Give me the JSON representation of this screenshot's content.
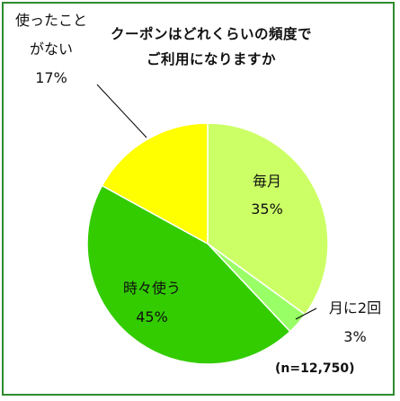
{
  "chart_data": {
    "type": "pie",
    "title": [
      "クーポンはどれくらいの頻度で",
      "ご利用になりますか"
    ],
    "slices": [
      {
        "label": "毎月",
        "value": 35,
        "value_label": "35%",
        "color": "#ccff66"
      },
      {
        "label": "月に2回",
        "value": 3,
        "value_label": "3%",
        "color": "#99ff66"
      },
      {
        "label": "時々使う",
        "value": 45,
        "value_label": "45%",
        "color": "#33cc00"
      },
      {
        "label_lines": [
          "使ったこと",
          "がない"
        ],
        "value": 17,
        "value_label": "17%",
        "color": "#ffff00"
      }
    ],
    "note": "(n=12,750)"
  }
}
